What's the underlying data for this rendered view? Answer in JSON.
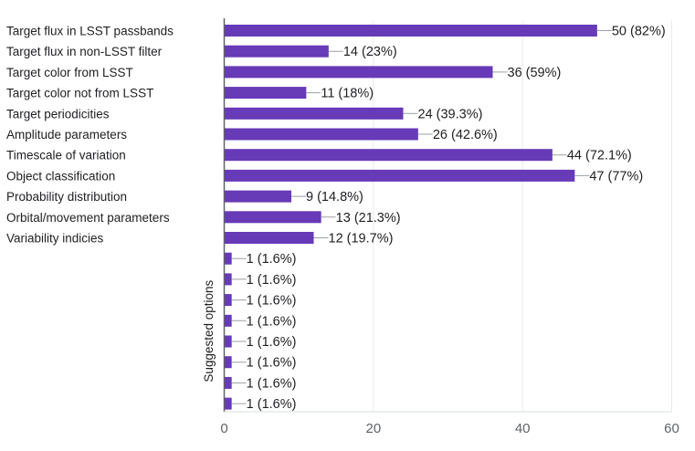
{
  "chart_data": {
    "type": "bar",
    "orientation": "horizontal",
    "categories": [
      "Target flux in LSST passbands",
      "Target flux in non-LSST filter",
      "Target color from LSST",
      "Target color not from LSST",
      "Target periodicities",
      "Amplitude parameters",
      "Timescale of variation",
      "Object classification",
      "Probability distribution",
      "Orbital/movement parameters",
      "Variability indicies",
      "",
      "",
      "",
      "",
      "",
      "",
      "",
      ""
    ],
    "values": [
      50,
      14,
      36,
      11,
      24,
      26,
      44,
      47,
      9,
      13,
      12,
      1,
      1,
      1,
      1,
      1,
      1,
      1,
      1
    ],
    "data_labels": [
      "50 (82%)",
      "14 (23%)",
      "36 (59%)",
      "11 (18%)",
      "24 (39.3%)",
      "26 (42.6%)",
      "44 (72.1%)",
      "47 (77%)",
      "9 (14.8%)",
      "13 (21.3%)",
      "12 (19.7%)",
      "1 (1.6%)",
      "1 (1.6%)",
      "1 (1.6%)",
      "1 (1.6%)",
      "1 (1.6%)",
      "1 (1.6%)",
      "1 (1.6%)",
      "1 (1.6%)"
    ],
    "group_label": "Suggested options",
    "xlim": [
      0,
      60
    ],
    "xticks": [
      "0",
      "20",
      "40",
      "60"
    ],
    "grid": true,
    "bar_color": "#673ab7",
    "axis_color": "#5f6368",
    "grid_color": "#e8eaed"
  }
}
